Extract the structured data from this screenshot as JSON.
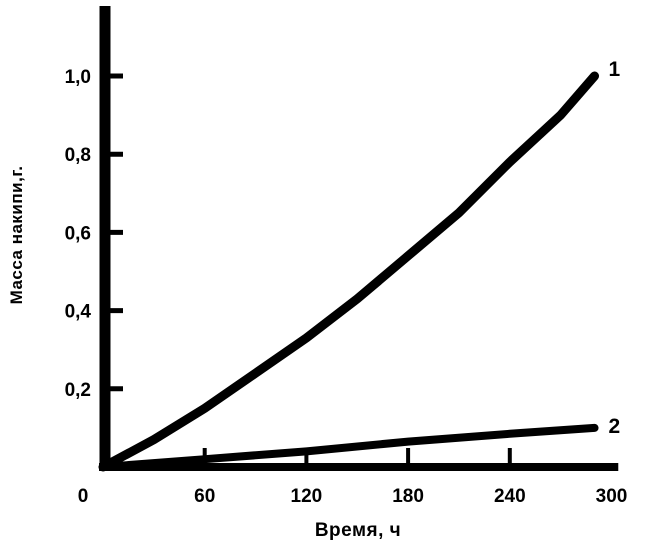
{
  "figure": {
    "background": "#ffffff",
    "ink_color": "#000000"
  },
  "chart_data": {
    "type": "line",
    "title": "",
    "xlabel": "Время, ч",
    "ylabel": "Масса накипи,г.",
    "xlim": [
      0,
      304
    ],
    "ylim": [
      0,
      1.18
    ],
    "grid": false,
    "legend_position": "labels-at-line-ends",
    "x_ticks": [
      {
        "value": 0,
        "label": "0",
        "mark": false
      },
      {
        "value": 60,
        "label": "60",
        "mark": true
      },
      {
        "value": 120,
        "label": "120",
        "mark": true
      },
      {
        "value": 180,
        "label": "180",
        "mark": true
      },
      {
        "value": 240,
        "label": "240",
        "mark": true
      },
      {
        "value": 300,
        "label": "300",
        "mark": false
      }
    ],
    "y_ticks": [
      {
        "value": 0.2,
        "label": "0,2",
        "mark": true
      },
      {
        "value": 0.4,
        "label": "0,4",
        "mark": true
      },
      {
        "value": 0.6,
        "label": "0,6",
        "mark": true
      },
      {
        "value": 0.8,
        "label": "0,8",
        "mark": true
      },
      {
        "value": 1.0,
        "label": "1,0",
        "mark": true
      }
    ],
    "series": [
      {
        "name": "1",
        "end_label": "1",
        "stroke_width": 9,
        "x": [
          0,
          30,
          60,
          90,
          120,
          150,
          180,
          210,
          240,
          270,
          290
        ],
        "y": [
          0,
          0.07,
          0.15,
          0.24,
          0.33,
          0.43,
          0.54,
          0.65,
          0.78,
          0.9,
          1.0
        ]
      },
      {
        "name": "2",
        "end_label": "2",
        "stroke_width": 8,
        "x": [
          0,
          60,
          120,
          180,
          240,
          290
        ],
        "y": [
          0,
          0.02,
          0.04,
          0.065,
          0.085,
          0.1
        ]
      }
    ]
  }
}
